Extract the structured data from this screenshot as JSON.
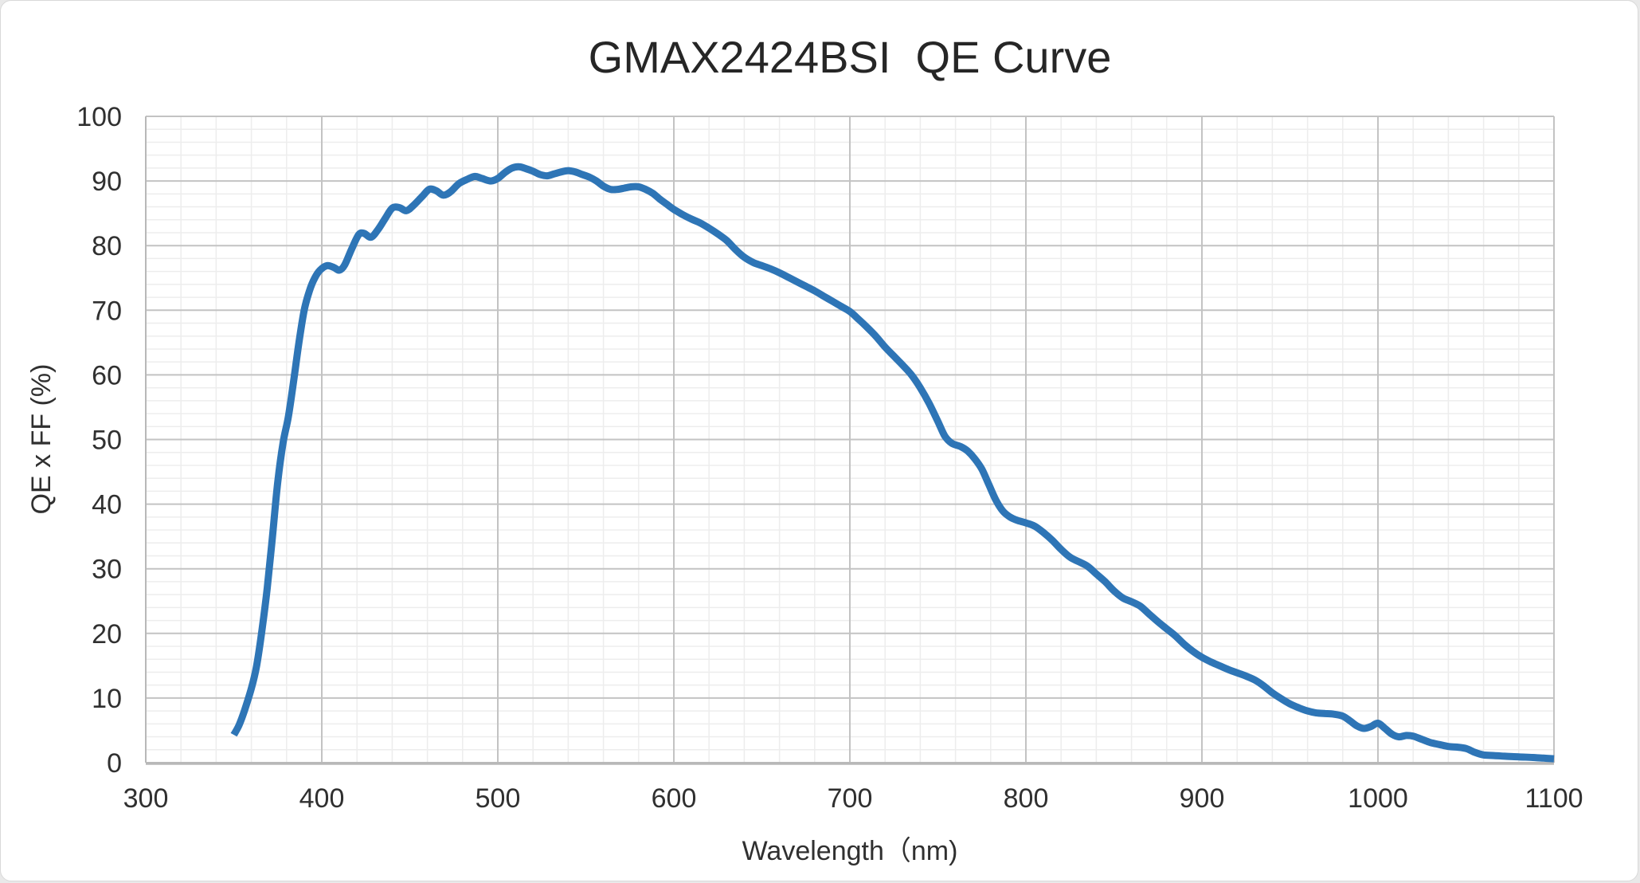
{
  "frame": {
    "background": "#ffffff",
    "border_color": "#d9d9d9"
  },
  "chart_data": {
    "type": "line",
    "title": "GMAX2424BSI  QE Curve",
    "xlabel": "Wavelength（nm)",
    "ylabel": "QE x FF (%)",
    "xlim": [
      300,
      1100
    ],
    "ylim": [
      0,
      100
    ],
    "x_ticks": [
      300,
      400,
      500,
      600,
      700,
      800,
      900,
      1000,
      1100
    ],
    "y_ticks": [
      0,
      10,
      20,
      30,
      40,
      50,
      60,
      70,
      80,
      90,
      100
    ],
    "x_minor_step": 20,
    "y_minor_step": 2,
    "grid": {
      "major": true,
      "minor": true,
      "major_color": "#c3c3c3",
      "minor_color": "#ededed",
      "axis_color": "#b8b8b8"
    },
    "legend": "none",
    "series": [
      {
        "name": "QE x FF",
        "color": "#2e75b6",
        "smooth": true,
        "points": [
          [
            350,
            4.3
          ],
          [
            353,
            5.8
          ],
          [
            356,
            8.0
          ],
          [
            360,
            11.5
          ],
          [
            363,
            15.0
          ],
          [
            366,
            20.5
          ],
          [
            369,
            27.0
          ],
          [
            372,
            35.0
          ],
          [
            375,
            43.5
          ],
          [
            378,
            49.5
          ],
          [
            381,
            53.5
          ],
          [
            384,
            59.0
          ],
          [
            387,
            65.0
          ],
          [
            390,
            70.0
          ],
          [
            393,
            73.0
          ],
          [
            396,
            75.0
          ],
          [
            399,
            76.2
          ],
          [
            403,
            76.9
          ],
          [
            407,
            76.6
          ],
          [
            410,
            76.2
          ],
          [
            413,
            77.0
          ],
          [
            417,
            79.5
          ],
          [
            421,
            81.7
          ],
          [
            424,
            81.9
          ],
          [
            428,
            81.3
          ],
          [
            432,
            82.5
          ],
          [
            436,
            84.2
          ],
          [
            440,
            85.8
          ],
          [
            444,
            85.9
          ],
          [
            448,
            85.4
          ],
          [
            452,
            86.2
          ],
          [
            457,
            87.6
          ],
          [
            461,
            88.7
          ],
          [
            465,
            88.5
          ],
          [
            469,
            87.8
          ],
          [
            473,
            88.3
          ],
          [
            478,
            89.6
          ],
          [
            483,
            90.3
          ],
          [
            487,
            90.7
          ],
          [
            491,
            90.4
          ],
          [
            496,
            90.0
          ],
          [
            500,
            90.4
          ],
          [
            504,
            91.3
          ],
          [
            508,
            92.0
          ],
          [
            512,
            92.2
          ],
          [
            516,
            91.9
          ],
          [
            520,
            91.5
          ],
          [
            524,
            91.0
          ],
          [
            528,
            90.8
          ],
          [
            532,
            91.1
          ],
          [
            536,
            91.4
          ],
          [
            540,
            91.6
          ],
          [
            544,
            91.4
          ],
          [
            548,
            91.0
          ],
          [
            552,
            90.6
          ],
          [
            556,
            90.0
          ],
          [
            560,
            89.2
          ],
          [
            564,
            88.7
          ],
          [
            568,
            88.7
          ],
          [
            572,
            88.9
          ],
          [
            576,
            89.1
          ],
          [
            580,
            89.1
          ],
          [
            584,
            88.7
          ],
          [
            588,
            88.1
          ],
          [
            592,
            87.2
          ],
          [
            596,
            86.4
          ],
          [
            600,
            85.6
          ],
          [
            605,
            84.8
          ],
          [
            610,
            84.1
          ],
          [
            615,
            83.5
          ],
          [
            620,
            82.7
          ],
          [
            625,
            81.8
          ],
          [
            630,
            80.8
          ],
          [
            635,
            79.4
          ],
          [
            640,
            78.2
          ],
          [
            645,
            77.4
          ],
          [
            650,
            76.9
          ],
          [
            655,
            76.4
          ],
          [
            660,
            75.8
          ],
          [
            665,
            75.1
          ],
          [
            670,
            74.4
          ],
          [
            675,
            73.7
          ],
          [
            680,
            73.0
          ],
          [
            685,
            72.2
          ],
          [
            690,
            71.4
          ],
          [
            695,
            70.6
          ],
          [
            700,
            69.8
          ],
          [
            705,
            68.6
          ],
          [
            710,
            67.3
          ],
          [
            715,
            65.9
          ],
          [
            720,
            64.3
          ],
          [
            725,
            62.9
          ],
          [
            730,
            61.5
          ],
          [
            735,
            60.0
          ],
          [
            740,
            58.0
          ],
          [
            745,
            55.6
          ],
          [
            750,
            52.8
          ],
          [
            754,
            50.5
          ],
          [
            758,
            49.4
          ],
          [
            763,
            48.9
          ],
          [
            767,
            48.2
          ],
          [
            771,
            47.0
          ],
          [
            775,
            45.4
          ],
          [
            779,
            43.0
          ],
          [
            783,
            40.6
          ],
          [
            787,
            38.9
          ],
          [
            791,
            38.0
          ],
          [
            795,
            37.5
          ],
          [
            800,
            37.1
          ],
          [
            805,
            36.6
          ],
          [
            810,
            35.6
          ],
          [
            815,
            34.4
          ],
          [
            820,
            33.0
          ],
          [
            825,
            31.8
          ],
          [
            830,
            31.1
          ],
          [
            835,
            30.4
          ],
          [
            840,
            29.2
          ],
          [
            845,
            28.0
          ],
          [
            850,
            26.6
          ],
          [
            855,
            25.5
          ],
          [
            860,
            24.9
          ],
          [
            865,
            24.2
          ],
          [
            870,
            23.0
          ],
          [
            875,
            21.8
          ],
          [
            880,
            20.7
          ],
          [
            885,
            19.6
          ],
          [
            890,
            18.3
          ],
          [
            895,
            17.2
          ],
          [
            900,
            16.3
          ],
          [
            905,
            15.6
          ],
          [
            910,
            15.0
          ],
          [
            915,
            14.4
          ],
          [
            920,
            13.9
          ],
          [
            925,
            13.4
          ],
          [
            930,
            12.8
          ],
          [
            935,
            11.9
          ],
          [
            940,
            10.8
          ],
          [
            945,
            9.9
          ],
          [
            950,
            9.1
          ],
          [
            955,
            8.5
          ],
          [
            960,
            8.0
          ],
          [
            965,
            7.7
          ],
          [
            970,
            7.6
          ],
          [
            975,
            7.5
          ],
          [
            980,
            7.2
          ],
          [
            984,
            6.5
          ],
          [
            988,
            5.7
          ],
          [
            992,
            5.3
          ],
          [
            996,
            5.6
          ],
          [
            1000,
            6.1
          ],
          [
            1004,
            5.3
          ],
          [
            1008,
            4.4
          ],
          [
            1012,
            4.0
          ],
          [
            1016,
            4.2
          ],
          [
            1020,
            4.1
          ],
          [
            1025,
            3.6
          ],
          [
            1030,
            3.1
          ],
          [
            1035,
            2.8
          ],
          [
            1040,
            2.5
          ],
          [
            1045,
            2.4
          ],
          [
            1050,
            2.2
          ],
          [
            1055,
            1.6
          ],
          [
            1060,
            1.2
          ],
          [
            1066,
            1.1
          ],
          [
            1072,
            1.0
          ],
          [
            1080,
            0.9
          ],
          [
            1088,
            0.8
          ],
          [
            1094,
            0.7
          ],
          [
            1100,
            0.6
          ]
        ]
      }
    ]
  }
}
